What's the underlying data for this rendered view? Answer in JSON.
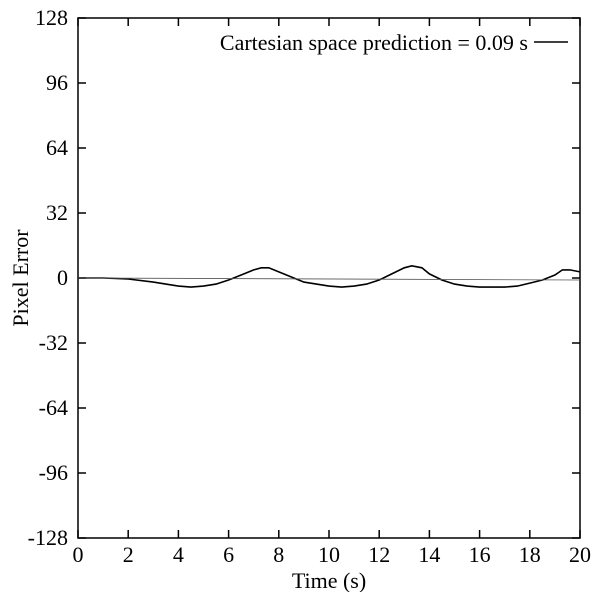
{
  "chart_data": {
    "type": "line",
    "title": "",
    "xlabel": "Time (s)",
    "ylabel": "Pixel Error",
    "xlim": [
      0,
      20
    ],
    "ylim": [
      -128,
      128
    ],
    "x_ticks": [
      0,
      2,
      4,
      6,
      8,
      10,
      12,
      14,
      16,
      18,
      20
    ],
    "x_tick_labels": [
      "0",
      "2",
      "4",
      "6",
      "8",
      "10",
      "12",
      "14",
      "16",
      "18",
      "20"
    ],
    "y_ticks": [
      128,
      96,
      64,
      32,
      0,
      -32,
      -64,
      -96,
      -128
    ],
    "y_tick_labels": [
      "128",
      "96",
      "64",
      "32",
      "0",
      "-32",
      "-64",
      "-96",
      "-128"
    ],
    "grid": false,
    "legend": {
      "position": "top-right"
    },
    "series": [
      {
        "name": "Cartesian space prediction = 0.09 s",
        "color": "#000000",
        "x": [
          0,
          1,
          2,
          3,
          3.5,
          4,
          4.5,
          5,
          5.5,
          6,
          6.5,
          7,
          7.3,
          7.6,
          8,
          8.5,
          9,
          9.5,
          10,
          10.5,
          11,
          11.5,
          12,
          12.5,
          13,
          13.3,
          13.7,
          14,
          14.5,
          15,
          15.5,
          16,
          16.5,
          17,
          17.5,
          18,
          18.5,
          19,
          19.3,
          19.6,
          20
        ],
        "y": [
          0,
          0,
          -0.5,
          -2,
          -3,
          -4,
          -4.5,
          -4,
          -3,
          -1,
          1.5,
          4,
          5,
          5,
          3,
          0.5,
          -2,
          -3,
          -4,
          -4.5,
          -4,
          -3,
          -1,
          2,
          5,
          6,
          5,
          2,
          -1,
          -3,
          -4,
          -4.5,
          -4.5,
          -4.5,
          -4,
          -2.5,
          -1,
          1.5,
          4,
          4,
          3
        ]
      },
      {
        "name": "",
        "color": "#555555",
        "x": [
          0,
          20
        ],
        "y": [
          0,
          -1
        ]
      }
    ]
  }
}
